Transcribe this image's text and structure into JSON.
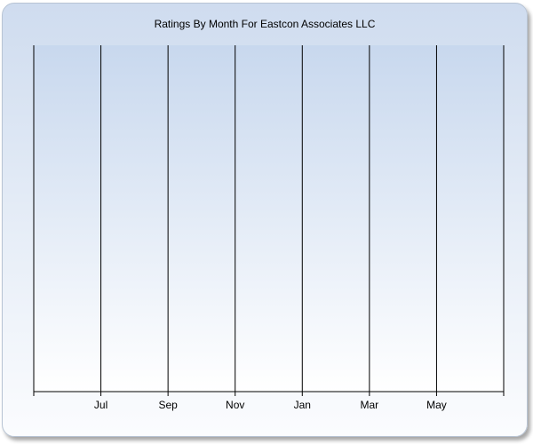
{
  "chart_data": {
    "type": "bar",
    "title": "Ratings By Month For Eastcon Associates LLC",
    "xlabel": "",
    "ylabel": "",
    "categories": [
      "Jul",
      "Sep",
      "Nov",
      "Jan",
      "Mar",
      "May"
    ],
    "series": [],
    "grid": {
      "x": true,
      "y": false
    },
    "legend": "none",
    "colors": {
      "plot_top": "#c8d8ee",
      "plot_bottom": "#ffffff",
      "gridline": "#000000"
    }
  }
}
